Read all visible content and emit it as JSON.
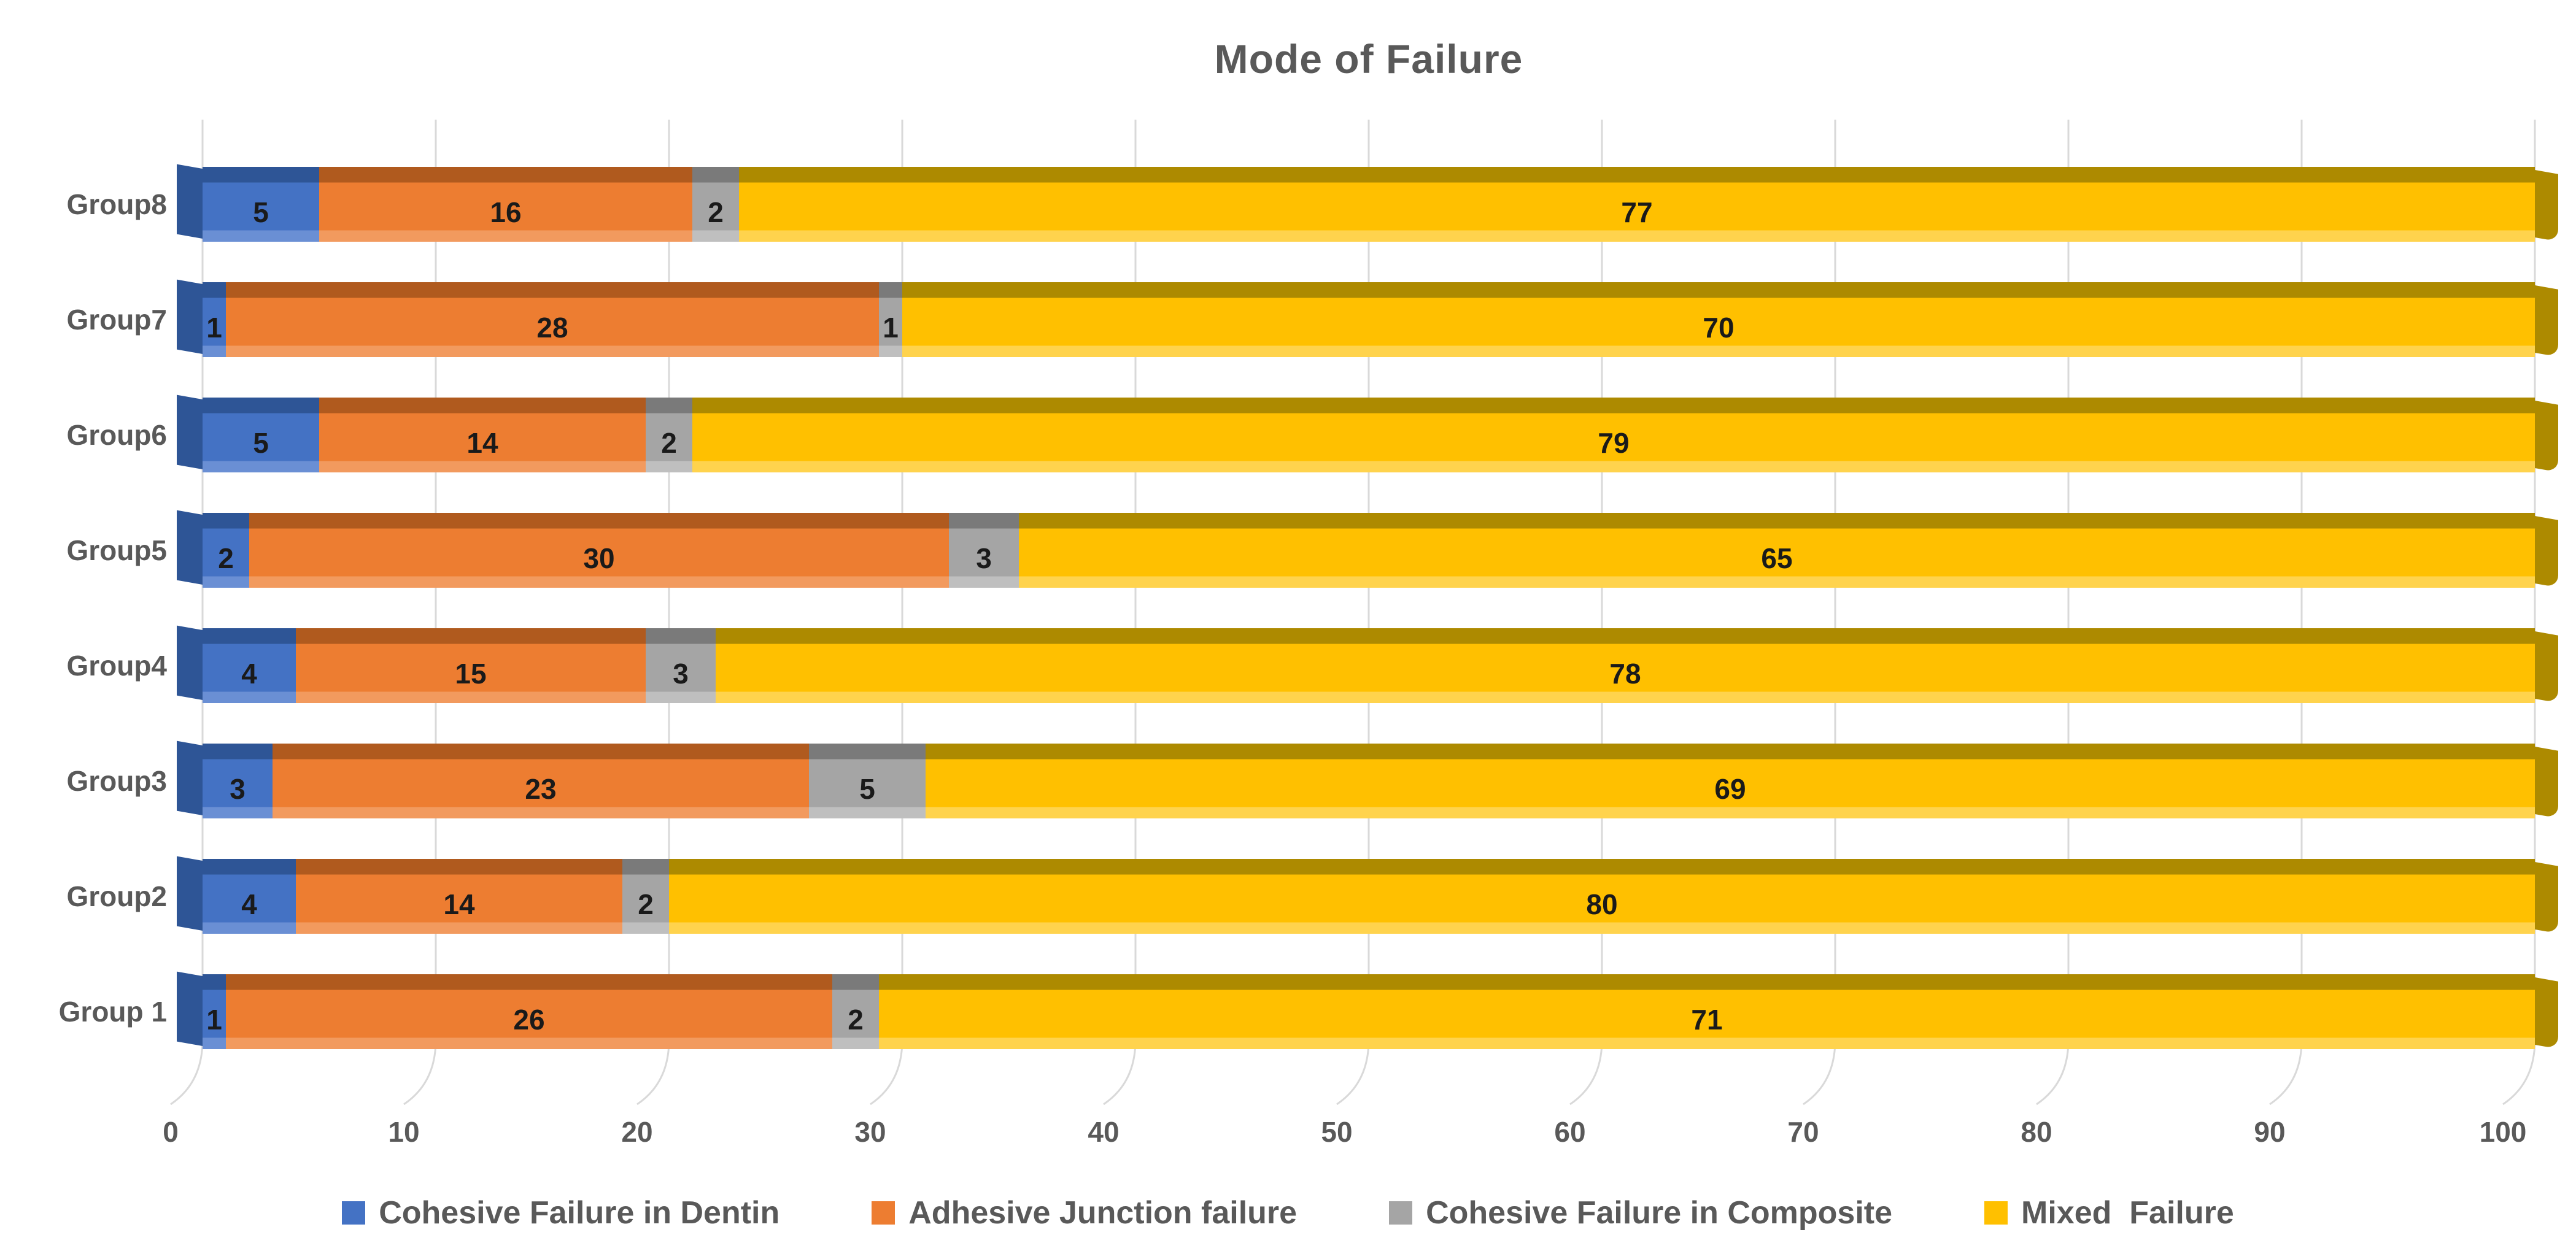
{
  "title": "Mode of Failure",
  "chart_data": {
    "type": "bar",
    "orientation": "horizontal-stacked",
    "title": "Mode of Failure",
    "categories": [
      "Group8",
      "Group7",
      "Group6",
      "Group5",
      "Group4",
      "Group3",
      "Group2",
      "Group 1"
    ],
    "series": [
      {
        "name": "Cohesive Failure in Dentin",
        "color": "#4472C4",
        "color_dark": "#2E5596",
        "color_light": "#6A8FD4",
        "values": [
          5,
          1,
          5,
          2,
          4,
          3,
          4,
          1
        ]
      },
      {
        "name": "Adhesive Junction failure",
        "color": "#ED7D31",
        "color_dark": "#B05A1E",
        "color_light": "#F29A5E",
        "values": [
          16,
          28,
          14,
          30,
          15,
          23,
          14,
          26
        ]
      },
      {
        "name": "Cohesive Failure in Composite",
        "color": "#A5A5A5",
        "color_dark": "#7A7A7A",
        "color_light": "#BFBFBF",
        "values": [
          2,
          1,
          2,
          3,
          3,
          5,
          2,
          2
        ]
      },
      {
        "name": "Mixed  Failure",
        "color": "#FFC000",
        "color_dark": "#AD8A00",
        "color_light": "#FFD34D",
        "values": [
          77,
          70,
          79,
          65,
          78,
          69,
          80,
          71
        ]
      }
    ],
    "x_ticks": [
      0,
      10,
      20,
      30,
      40,
      50,
      60,
      70,
      80,
      90,
      100
    ],
    "xlim": [
      0,
      100
    ],
    "grid": true,
    "legend_position": "bottom",
    "data_labels_shown": true
  },
  "colors": {
    "title_text": "#595959",
    "axis_text": "#595959",
    "gridline": "#D9D9D9",
    "data_label": "#1a1a1a",
    "background": "#FFFFFF"
  }
}
